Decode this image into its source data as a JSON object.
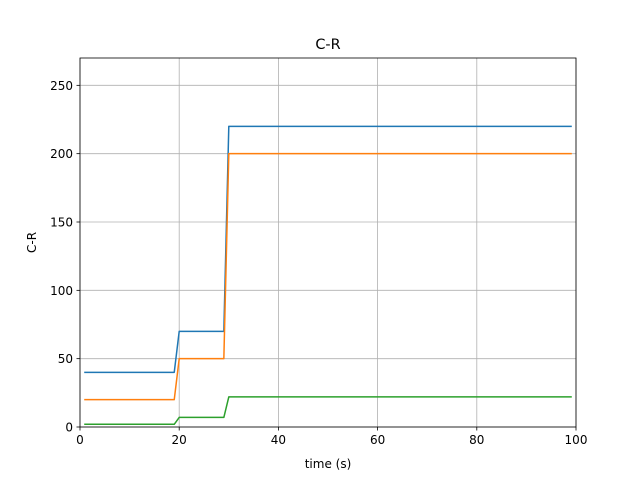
{
  "chart_data": {
    "type": "line",
    "title": "C-R",
    "xlabel": "time (s)",
    "ylabel": "C-R",
    "xlim": [
      0,
      100
    ],
    "ylim": [
      0,
      270
    ],
    "xticks": [
      0,
      20,
      40,
      60,
      80,
      100
    ],
    "yticks": [
      0,
      50,
      100,
      150,
      200,
      250
    ],
    "xtick_labels": [
      "0",
      "20",
      "40",
      "60",
      "80",
      "100"
    ],
    "ytick_labels": [
      "0",
      "50",
      "100",
      "150",
      "200",
      "250"
    ],
    "grid": true,
    "series": [
      {
        "color": "#1f77b4",
        "x": [
          1,
          19,
          20,
          29,
          30,
          99
        ],
        "y": [
          40,
          40,
          70,
          70,
          220,
          220
        ]
      },
      {
        "color": "#ff7f0e",
        "x": [
          1,
          19,
          20,
          29,
          30,
          99
        ],
        "y": [
          20,
          20,
          50,
          50,
          200,
          200
        ]
      },
      {
        "color": "#2ca02c",
        "x": [
          1,
          19,
          20,
          29,
          30,
          99
        ],
        "y": [
          2,
          2,
          7,
          7,
          22,
          22
        ]
      }
    ]
  }
}
